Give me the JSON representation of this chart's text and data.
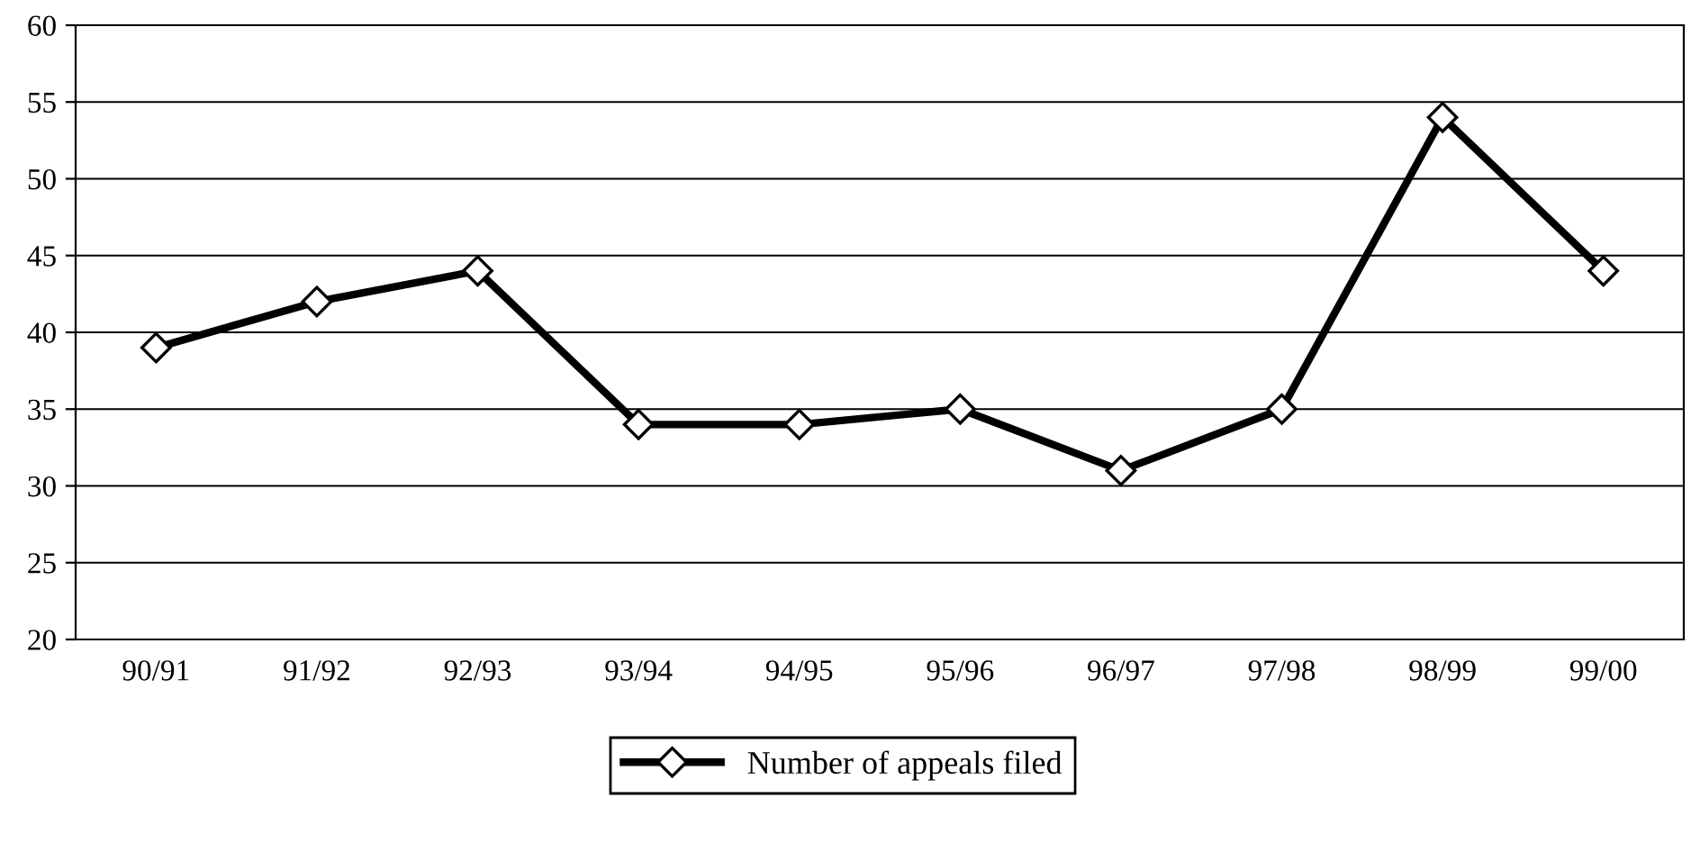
{
  "chart_data": {
    "type": "line",
    "categories": [
      "90/91",
      "91/92",
      "92/93",
      "93/94",
      "94/95",
      "95/96",
      "96/97",
      "97/98",
      "98/99",
      "99/00"
    ],
    "series": [
      {
        "name": "Number of appeals filed",
        "color": "#000000",
        "values": [
          39,
          42,
          44,
          34,
          34,
          35,
          31,
          35,
          54,
          44
        ]
      }
    ],
    "ylim": [
      20,
      60
    ],
    "yticks": [
      20,
      25,
      30,
      35,
      40,
      45,
      50,
      55,
      60
    ],
    "grid": "y",
    "legend": "bottom",
    "marker": "diamond",
    "line_style": "solid"
  }
}
